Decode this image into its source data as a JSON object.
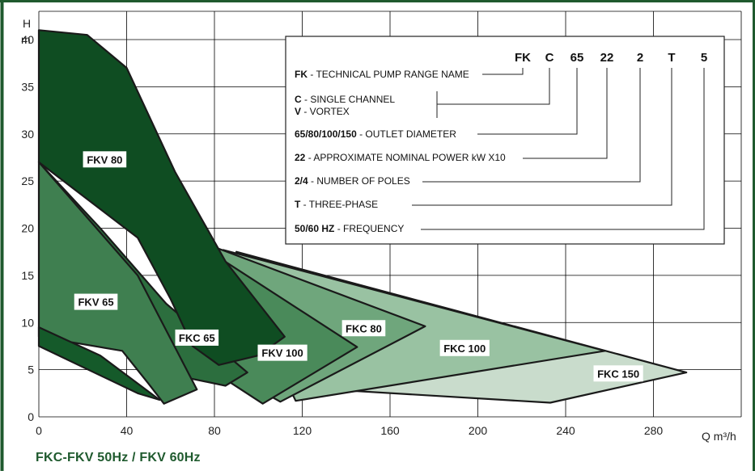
{
  "chart_data": {
    "type": "area",
    "caption": "FKC-FKV 50Hz / FKV 60Hz",
    "xlabel": "Q m³/h",
    "ylabel_line1": "H",
    "ylabel_line2": "m",
    "xlim": [
      0,
      320
    ],
    "ylim": [
      0,
      43
    ],
    "xticks": [
      0,
      40,
      80,
      120,
      160,
      200,
      240,
      280
    ],
    "yticks": [
      0,
      5,
      10,
      15,
      20,
      25,
      30,
      35,
      40
    ],
    "grid": true,
    "series": [
      {
        "name": "FKC 150",
        "color": "#c9dccc",
        "label_pos": [
          264,
          4.6
        ],
        "polygon": [
          [
            90,
            17.5
          ],
          [
            295,
            4.7
          ],
          [
            233,
            1.5
          ],
          [
            104,
            3.3
          ]
        ]
      },
      {
        "name": "FKC 100",
        "color": "#99c2a2",
        "label_pos": [
          194,
          7.3
        ],
        "polygon": [
          [
            84,
            17.7
          ],
          [
            258,
            7.0
          ],
          [
            117,
            1.7
          ]
        ]
      },
      {
        "name": "FKC 80",
        "color": "#6fa67c",
        "label_pos": [
          148,
          9.4
        ],
        "polygon": [
          [
            80,
            18
          ],
          [
            176,
            9.6
          ],
          [
            110,
            1.6
          ],
          [
            88,
            4.5
          ]
        ]
      },
      {
        "name": "FKV 100",
        "color": "#4a8a5a",
        "label_pos": [
          111,
          6.8
        ],
        "polygon": [
          [
            78,
            17.5
          ],
          [
            145,
            7.4
          ],
          [
            102,
            1.4
          ],
          [
            75,
            5.5
          ]
        ]
      },
      {
        "name": "FKC 65",
        "color": "#2c6e3e",
        "label_pos": [
          72,
          8.4
        ],
        "polygon": [
          [
            0,
            27
          ],
          [
            28,
            20
          ],
          [
            58,
            12
          ],
          [
            95,
            4.7
          ],
          [
            85,
            3.3
          ],
          [
            60,
            4.5
          ],
          [
            42,
            6.5
          ]
        ]
      },
      {
        "name": "FKV 65",
        "color": "#3f7f50",
        "label_pos": [
          26,
          12.2
        ],
        "polygon": [
          [
            0,
            27
          ],
          [
            45,
            15
          ],
          [
            72,
            2.9
          ],
          [
            57,
            1.4
          ],
          [
            50,
            3.5
          ],
          [
            38,
            7.0
          ],
          [
            0,
            8.5
          ]
        ]
      },
      {
        "name": "FKV 50Hz small",
        "color": "#155a2a",
        "label_pos": null,
        "polygon": [
          [
            0,
            9.5
          ],
          [
            28,
            6.5
          ],
          [
            55,
            1.8
          ],
          [
            45,
            2.5
          ],
          [
            0,
            7.5
          ]
        ]
      },
      {
        "name": "FKV 80",
        "color": "#0f4d22",
        "label_pos": [
          30,
          27.3
        ],
        "polygon": [
          [
            0,
            41
          ],
          [
            22,
            40.5
          ],
          [
            40,
            37
          ],
          [
            62,
            26
          ],
          [
            85,
            16.5
          ],
          [
            112,
            8.5
          ],
          [
            100,
            6.5
          ],
          [
            82,
            5.5
          ],
          [
            70,
            7.5
          ],
          [
            60,
            12.5
          ],
          [
            45,
            19
          ],
          [
            0,
            27
          ]
        ]
      }
    ]
  },
  "legend_box": {
    "code_letters": [
      "FK",
      "C",
      "65",
      "22",
      "2",
      "T",
      "5"
    ],
    "rows": [
      {
        "bold": "FK",
        "text": " - TECHNICAL PUMP RANGE NAME"
      },
      {
        "bold": "C",
        "text": " - SINGLE CHANNEL"
      },
      {
        "bold": "V",
        "text": " - VORTEX"
      },
      {
        "bold": "65/80/100/150",
        "text": " - OUTLET DIAMETER"
      },
      {
        "bold": "22",
        "text": " - APPROXIMATE NOMINAL POWER kW X10"
      },
      {
        "bold": "2/4",
        "text": " - NUMBER OF POLES"
      },
      {
        "bold": "T",
        "text": " - THREE-PHASE"
      },
      {
        "bold": "50/60 HZ",
        "text": " - FREQUENCY"
      }
    ]
  },
  "colors": {
    "frame": "#1f5a2e",
    "grid": "#000000",
    "outline": "#1a1a1a"
  }
}
